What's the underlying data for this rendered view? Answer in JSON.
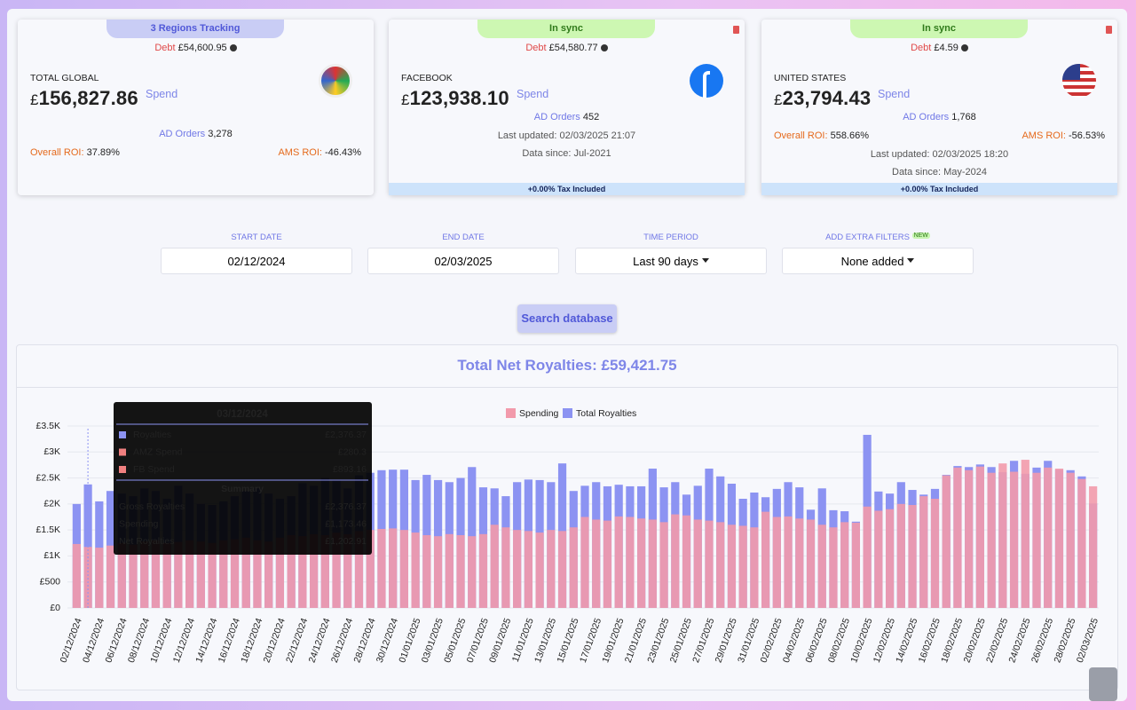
{
  "cards": [
    {
      "badge": "3 Regions Tracking",
      "debt_label": "Debt",
      "debt": "£54,600.95",
      "name": "TOTAL GLOBAL",
      "currency": "£",
      "amount": "156,827.86",
      "amount_suffix": "Spend",
      "orders_label": "AD Orders",
      "orders": "3,278",
      "roi_label": "Overall ROI:",
      "roi": "37.89%",
      "ams_label": "AMS ROI:",
      "ams": "-46.43%"
    },
    {
      "badge": "In sync",
      "debt_label": "Debt",
      "debt": "£54,580.77",
      "name": "FACEBOOK",
      "currency": "£",
      "amount": "123,938.10",
      "amount_suffix": "Spend",
      "orders_label": "AD Orders",
      "orders": "452",
      "updated": "Last updated: 02/03/2025 21:07",
      "since": "Data since: Jul-2021",
      "tax": "+0.00% Tax Included"
    },
    {
      "badge": "In sync",
      "debt_label": "Debt",
      "debt": "£4.59",
      "name": "UNITED STATES",
      "currency": "£",
      "amount": "23,794.43",
      "amount_suffix": "Spend",
      "orders_label": "AD Orders",
      "orders": "1,768",
      "roi_label": "Overall ROI:",
      "roi": "558.66%",
      "ams_label": "AMS ROI:",
      "ams": "-56.53%",
      "updated": "Last updated: 02/03/2025 18:20",
      "since": "Data since: May-2024",
      "tax": "+0.00% Tax Included"
    }
  ],
  "filters": [
    {
      "label": "START DATE",
      "value": "02/12/2024"
    },
    {
      "label": "END DATE",
      "value": "02/03/2025"
    },
    {
      "label": "TIME PERIOD",
      "value": "Last 90 days"
    },
    {
      "label": "ADD EXTRA FILTERS",
      "value": "None added",
      "badge": "NEW"
    }
  ],
  "search_button": "Search database",
  "chart_data": {
    "type": "bar",
    "title": "Total Net Royalties:",
    "title_value": "£59,421.75",
    "categories": [
      "02/12/2024",
      null,
      "04/12/2024",
      null,
      "06/12/2024",
      null,
      "08/12/2024",
      null,
      "10/12/2024",
      null,
      "12/12/2024",
      null,
      "14/12/2024",
      null,
      "16/12/2024",
      null,
      "18/12/2024",
      null,
      "20/12/2024",
      null,
      "22/12/2024",
      null,
      "24/12/2024",
      null,
      "26/12/2024",
      null,
      "28/12/2024",
      null,
      "30/12/2024",
      null,
      "01/01/2025",
      null,
      "03/01/2025",
      null,
      "05/01/2025",
      null,
      "07/01/2025",
      null,
      "09/01/2025",
      null,
      "11/01/2025",
      null,
      "13/01/2025",
      null,
      "15/01/2025",
      null,
      "17/01/2025",
      null,
      "19/01/2025",
      null,
      "21/01/2025",
      null,
      "23/01/2025",
      null,
      "25/01/2025",
      null,
      "27/01/2025",
      null,
      "29/01/2025",
      null,
      "31/01/2025",
      null,
      "02/02/2025",
      null,
      "04/02/2025",
      null,
      "06/02/2025",
      null,
      "08/02/2025",
      null,
      "10/02/2025",
      null,
      "12/02/2025",
      null,
      "14/02/2025",
      null,
      "16/02/2025",
      null,
      "18/02/2025",
      null,
      "20/02/2025",
      null,
      "22/02/2025",
      null,
      "24/02/2025",
      null,
      "26/02/2025",
      null,
      "28/02/2025",
      null,
      "02/03/2025"
    ],
    "series": [
      {
        "name": "Total Royalties",
        "color": "#8c93f2",
        "values": [
          2000,
          2376.37,
          2050,
          2250,
          2200,
          2150,
          2300,
          2250,
          2100,
          2350,
          2200,
          2000,
          1980,
          2050,
          2150,
          2250,
          2300,
          2200,
          2100,
          2150,
          2400,
          2350,
          2500,
          2450,
          2300,
          2550,
          2600,
          2650,
          2660,
          2660,
          2460,
          2560,
          2460,
          2420,
          2500,
          2710,
          2320,
          2300,
          2150,
          2420,
          2470,
          2460,
          2420,
          2780,
          2250,
          2350,
          2420,
          2340,
          2370,
          2340,
          2340,
          2680,
          2320,
          2420,
          2180,
          2350,
          2680,
          2530,
          2390,
          2100,
          2220,
          2130,
          2290,
          2420,
          2320,
          1890,
          2300,
          1880,
          1860,
          1660,
          3330,
          2240,
          2200,
          2420,
          2270,
          2180,
          2290,
          2560,
          2730,
          2710,
          2760,
          2710,
          2610,
          2830,
          2580,
          2700,
          2830,
          2660,
          2650,
          2530,
          2010
        ]
      },
      {
        "name": "Spending",
        "color": "#f29aab",
        "values": [
          1230,
          1173.46,
          1160,
          1200,
          1250,
          1220,
          1280,
          1300,
          1250,
          1270,
          1300,
          1280,
          1250,
          1300,
          1320,
          1350,
          1300,
          1280,
          1350,
          1400,
          1380,
          1420,
          1400,
          1450,
          1420,
          1480,
          1500,
          1520,
          1530,
          1500,
          1450,
          1400,
          1380,
          1420,
          1400,
          1380,
          1420,
          1600,
          1550,
          1500,
          1480,
          1450,
          1500,
          1480,
          1550,
          1750,
          1700,
          1680,
          1760,
          1750,
          1720,
          1700,
          1650,
          1800,
          1780,
          1700,
          1680,
          1650,
          1600,
          1580,
          1550,
          1850,
          1750,
          1760,
          1720,
          1700,
          1600,
          1550,
          1650,
          1640,
          1950,
          1870,
          1900,
          2000,
          1980,
          2150,
          2100,
          2550,
          2700,
          2650,
          2720,
          2600,
          2780,
          2620,
          2850,
          2600,
          2700,
          2680,
          2600,
          2480,
          2340
        ]
      }
    ],
    "ylim": [
      0,
      3500
    ],
    "yticks": [
      {
        "value": 0,
        "label": "£0"
      },
      {
        "value": 500,
        "label": "£500"
      },
      {
        "value": 1000,
        "label": "£1K"
      },
      {
        "value": 1500,
        "label": "£1.5K"
      },
      {
        "value": 2000,
        "label": "£2K"
      },
      {
        "value": 2500,
        "label": "£2.5K"
      },
      {
        "value": 3000,
        "label": "£3K"
      },
      {
        "value": 3500,
        "label": "£3.5K"
      }
    ],
    "grid": true,
    "legend": "top",
    "tooltip": {
      "title": "03/12/2024",
      "rows": [
        {
          "label": "Royalties",
          "value": "£2,376.37",
          "color": "#8c93f2"
        },
        {
          "label": "AMZ Spend",
          "value": "£280.3",
          "color": "#f07f7f"
        },
        {
          "label": "FB Spend",
          "value": "£893.16",
          "color": "#f07f7f"
        }
      ],
      "summary_title": "Summary",
      "summary": [
        {
          "label": "Gross Royalties",
          "value": "£2,376.37"
        },
        {
          "label": "Spending",
          "value": "£1,173.46"
        },
        {
          "label": "Net Royalties",
          "value": "£1,202.91"
        }
      ]
    }
  }
}
